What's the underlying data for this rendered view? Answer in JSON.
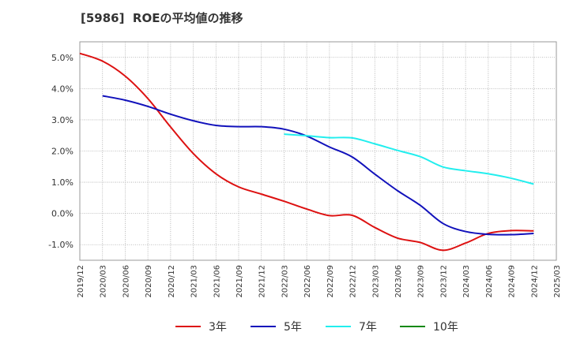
{
  "chart_data": {
    "type": "line",
    "title": "[5986]  ROEの平均値の推移",
    "xlabel": "",
    "ylabel": "",
    "ylim": [
      -1.5,
      5.5
    ],
    "y_ticks": [
      5.0,
      4.0,
      3.0,
      2.0,
      1.0,
      0.0,
      -1.0
    ],
    "y_tick_labels": [
      "5.0%",
      "4.0%",
      "3.0%",
      "2.0%",
      "1.0%",
      "0.0%",
      "-1.0%"
    ],
    "grid": true,
    "legend_position": "bottom",
    "x_tick_labels": [
      "2019/12",
      "2020/03",
      "2020/06",
      "2020/09",
      "2020/12",
      "2021/03",
      "2021/06",
      "2021/09",
      "2021/12",
      "2022/03",
      "2022/06",
      "2022/09",
      "2022/12",
      "2023/03",
      "2023/06",
      "2023/09",
      "2023/12",
      "2024/03",
      "2024/06",
      "2024/09",
      "2024/12",
      "2025/03"
    ],
    "series": [
      {
        "name": "3年",
        "color": "#dd1111",
        "x": [
          "2019/12",
          "2020/03",
          "2020/06",
          "2020/09",
          "2020/12",
          "2021/03",
          "2021/06",
          "2021/09",
          "2021/12",
          "2022/03",
          "2022/06",
          "2022/09",
          "2022/12",
          "2023/03",
          "2023/06",
          "2023/09",
          "2023/12",
          "2024/03",
          "2024/06",
          "2024/09",
          "2024/12"
        ],
        "values": [
          5.13,
          4.88,
          4.4,
          3.68,
          2.77,
          1.92,
          1.27,
          0.85,
          0.62,
          0.39,
          0.14,
          -0.07,
          -0.06,
          -0.45,
          -0.79,
          -0.93,
          -1.18,
          -0.95,
          -0.64,
          -0.55,
          -0.56
        ]
      },
      {
        "name": "5年",
        "color": "#1111bb",
        "x": [
          "2020/03",
          "2020/06",
          "2020/09",
          "2020/12",
          "2021/03",
          "2021/06",
          "2021/09",
          "2021/12",
          "2022/03",
          "2022/06",
          "2022/09",
          "2022/12",
          "2023/03",
          "2023/06",
          "2023/09",
          "2023/12",
          "2024/03",
          "2024/06",
          "2024/09",
          "2024/12"
        ],
        "values": [
          3.77,
          3.63,
          3.43,
          3.18,
          2.97,
          2.82,
          2.78,
          2.78,
          2.7,
          2.48,
          2.13,
          1.81,
          1.26,
          0.73,
          0.26,
          -0.32,
          -0.58,
          -0.67,
          -0.68,
          -0.64
        ]
      },
      {
        "name": "7年",
        "color": "#22eeee",
        "x": [
          "2022/03",
          "2022/06",
          "2022/09",
          "2022/12",
          "2023/03",
          "2023/06",
          "2023/09",
          "2023/12",
          "2024/03",
          "2024/06",
          "2024/09",
          "2024/12"
        ],
        "values": [
          2.54,
          2.49,
          2.43,
          2.42,
          2.23,
          2.02,
          1.82,
          1.49,
          1.37,
          1.27,
          1.13,
          0.94
        ]
      },
      {
        "name": "10年",
        "color": "#118811",
        "x": [],
        "values": []
      }
    ]
  }
}
